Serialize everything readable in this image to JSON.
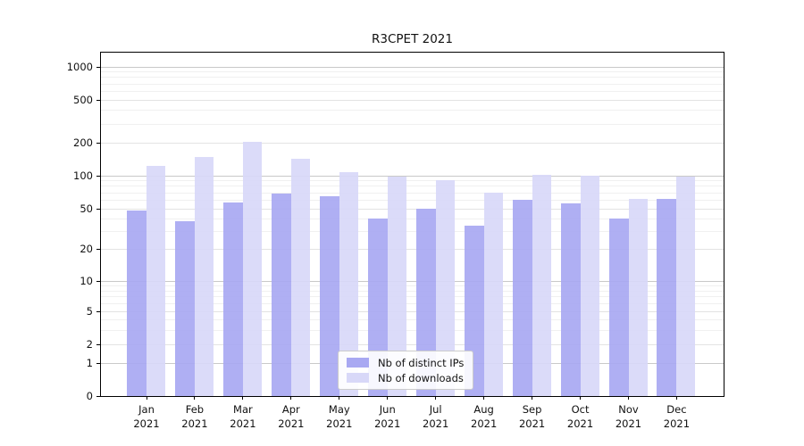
{
  "chart_data": {
    "type": "bar",
    "title": "R3CPET 2021",
    "categories": [
      "Jan",
      "Feb",
      "Mar",
      "Apr",
      "May",
      "Jun",
      "Jul",
      "Aug",
      "Sep",
      "Oct",
      "Nov",
      "Dec"
    ],
    "year_label": "2021",
    "series": [
      {
        "name": "Nb of distinct IPs",
        "color": "#a8a8f2",
        "values": [
          48,
          37,
          57,
          68,
          64,
          40,
          50,
          34,
          60,
          55,
          40,
          61
        ]
      },
      {
        "name": "Nb of downloads",
        "color": "#d8d8f8",
        "values": [
          122,
          148,
          203,
          142,
          106,
          97,
          91,
          69,
          101,
          100,
          61,
          97
        ]
      }
    ],
    "y_axis": {
      "scale": "symlog",
      "ticks": [
        0,
        1,
        2,
        5,
        10,
        20,
        50,
        100,
        200,
        500,
        1000
      ]
    },
    "grid": true,
    "legend_position": "lower center"
  },
  "colors": {
    "major_grid": "#c9c9c9",
    "sub_grid": "#e3e3e3",
    "minor_grid": "#f0f0f0",
    "axis": "#000000"
  }
}
